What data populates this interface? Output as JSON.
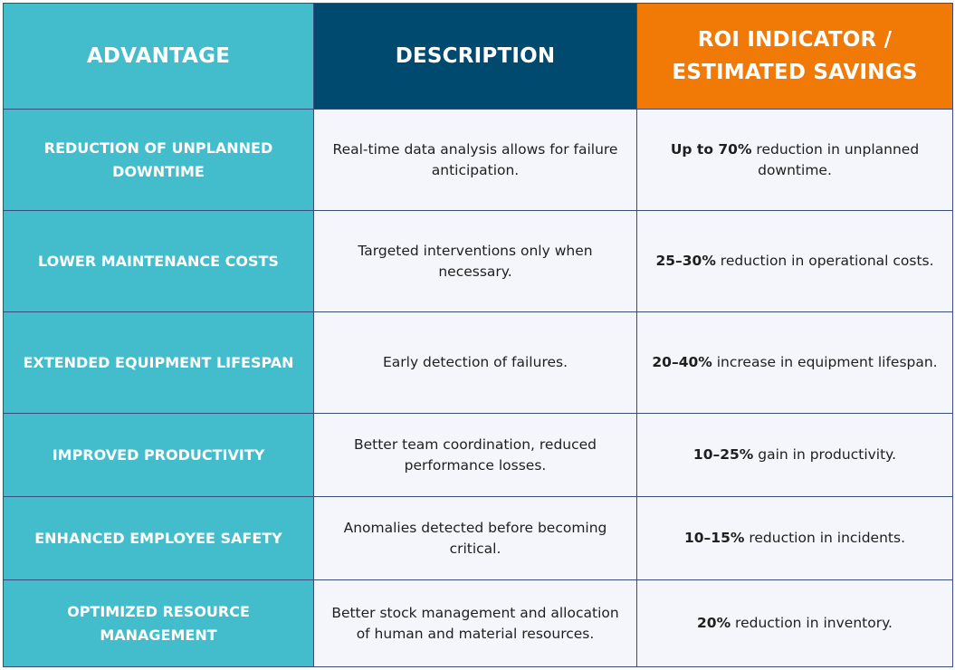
{
  "headers": {
    "advantage": "ADVANTAGE",
    "description": "DESCRIPTION",
    "roi_line1": "ROI INDICATOR /",
    "roi_line2": "ESTIMATED SAVINGS"
  },
  "rows": [
    {
      "advantage_line1": "REDUCTION OF UNPLANNED",
      "advantage_line2": "DOWNTIME",
      "description": "Real-time data analysis allows for failure anticipation.",
      "roi_bold": "Up to 70%",
      "roi_text": " reduction in unplanned downtime."
    },
    {
      "advantage_line1": "LOWER MAINTENANCE COSTS",
      "advantage_line2": "",
      "description": "Targeted interventions only when necessary.",
      "roi_bold": "25–30%",
      "roi_text": " reduction in operational costs."
    },
    {
      "advantage_line1": "EXTENDED EQUIPMENT LIFESPAN",
      "advantage_line2": "",
      "description": "Early detection of failures.",
      "roi_bold": "20–40%",
      "roi_text": " increase in equipment lifespan."
    },
    {
      "advantage_line1": "IMPROVED PRODUCTIVITY",
      "advantage_line2": "",
      "description": "Better team coordination, reduced performance losses.",
      "roi_bold": "10–25%",
      "roi_text": " gain in productivity."
    },
    {
      "advantage_line1": "ENHANCED EMPLOYEE SAFETY",
      "advantage_line2": "",
      "description": "Anomalies detected before becoming critical.",
      "roi_bold": "10–15%",
      "roi_text": " reduction in incidents."
    },
    {
      "advantage_line1": "OPTIMIZED RESOURCE MANAGEMENT",
      "advantage_line2": "",
      "description": "Better stock management and allocation of human and material resources.",
      "roi_bold": "20%",
      "roi_text": " reduction in inventory."
    }
  ],
  "colors": {
    "advantage_column": "#43bccb",
    "description_header": "#004a70",
    "roi_header": "#f07a05",
    "body_background": "#f4f6fc",
    "grid_lines": "#3a4d7a"
  }
}
